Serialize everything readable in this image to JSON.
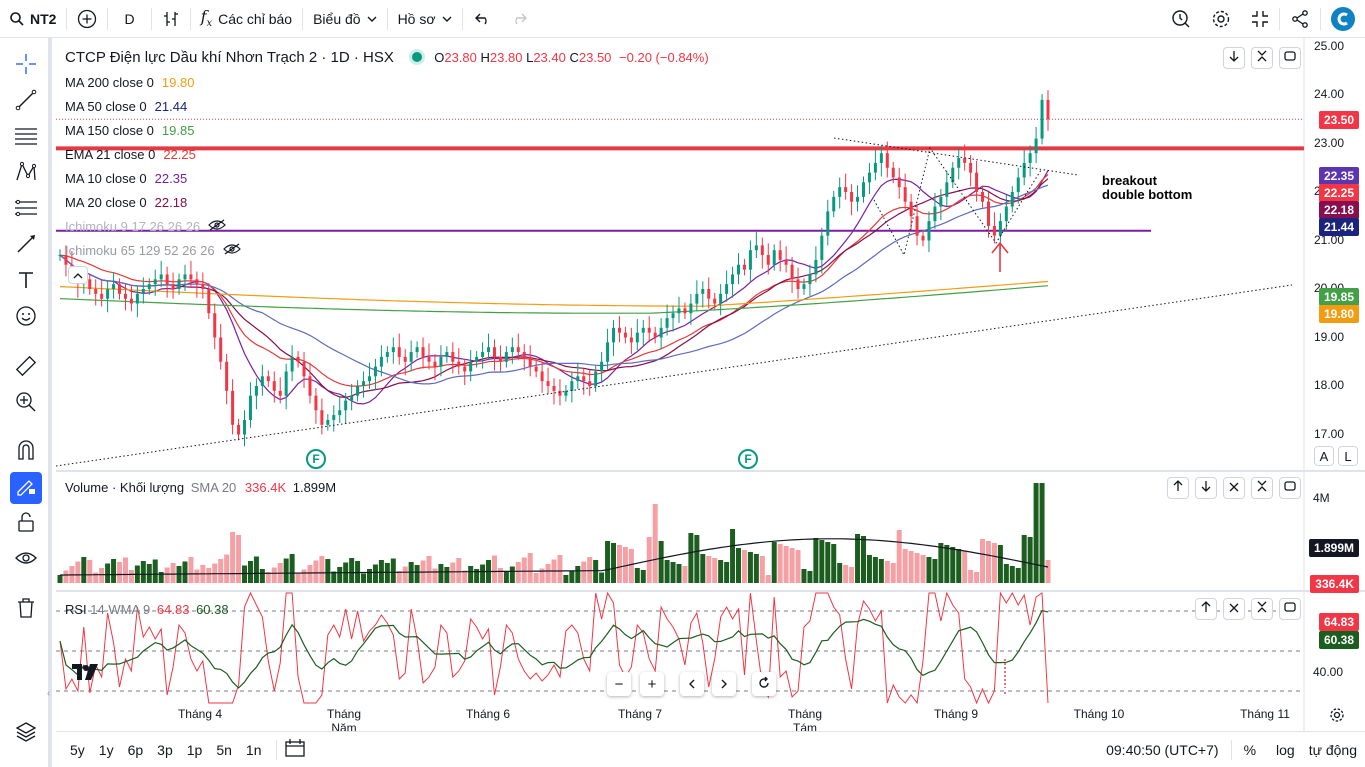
{
  "toolbar": {
    "symbol": "NT2",
    "interval": "D",
    "indicators_label": "Các chỉ báo",
    "chart_type_label": "Biểu đồ",
    "profile_label": "Hồ sơ",
    "icons": [
      "search-icon",
      "plus-circle-icon",
      "bar-type-icon",
      "fx-icon",
      "chevron-down-icon",
      "undo-icon",
      "redo-icon",
      "alert-icon",
      "gear-icon",
      "fullscreen-icon",
      "share-icon",
      "logo-icon"
    ]
  },
  "left_tools": [
    "crosshair-icon",
    "trendline-icon",
    "fib-icon",
    "pattern-icon",
    "multi-line-icon",
    "brush-icon",
    "text-icon",
    "emoji-icon",
    "ruler-icon",
    "zoom-in-icon",
    "magnet-icon",
    "lock-draw-icon",
    "lock-icon",
    "eye-icon",
    "trash-icon",
    "layers-icon"
  ],
  "header": {
    "title": "CTCP Điện lực Dầu khí Nhơn Trạch 2 · 1D · HSX",
    "o_label": "O",
    "o_value": "23.80",
    "h_label": "H",
    "h_value": "23.80",
    "l_label": "L",
    "l_value": "23.40",
    "c_label": "C",
    "c_value": "23.50",
    "change": "−0.20 (−0.84%)"
  },
  "indicators": [
    {
      "label": "MA 200 close 0",
      "value": "19.80",
      "color": "#f39c12"
    },
    {
      "label": "MA 50 close 0",
      "value": "21.44",
      "color": "#1a237e"
    },
    {
      "label": "MA 150 close 0",
      "value": "19.85",
      "color": "#43a047"
    },
    {
      "label": "EMA 21 close 0",
      "value": "22.25",
      "color": "#e53935"
    },
    {
      "label": "MA 10 close 0",
      "value": "22.35",
      "color": "#7b1fa2"
    },
    {
      "label": "MA 20 close 0",
      "value": "22.18",
      "color": "#880e4f"
    },
    {
      "label": "Ichimoku 9 17 26 26 26",
      "value": "",
      "color": "#b0b3bd"
    },
    {
      "label": "Ichimoku 65 129 52 26 26",
      "value": "",
      "color": "#9a9ca5"
    }
  ],
  "annotation": {
    "line1": "breakout",
    "line2": "double bottom"
  },
  "flag_marker": "F",
  "price_tags": [
    {
      "value": "23.50",
      "color": "#f23645"
    },
    {
      "value": "22.35",
      "color": "#5e35b1"
    },
    {
      "value": "22.25",
      "color": "#f23645"
    },
    {
      "value": "22.18",
      "color": "#880e4f"
    },
    {
      "value": "21.44",
      "color": "#1a237e"
    },
    {
      "value": "19.85",
      "color": "#43a047"
    },
    {
      "value": "19.80",
      "color": "#f39c12"
    }
  ],
  "price_scale_buttons": {
    "auto": "A",
    "log": "L"
  },
  "volume": {
    "title": "Volume · Khối lượng",
    "sma_label": "SMA 20",
    "sma_value": "336.4K",
    "value": "1.899M",
    "axis_label": "4M",
    "tag_value": "1.899M",
    "tag_sma": "336.4K"
  },
  "rsi": {
    "title": "RSI",
    "params": "14 WMA 9",
    "rsi_value": "64.83",
    "wma_value": "60.38",
    "axis_label": "40.00",
    "tag_rsi": "64.83",
    "tag_wma": "60.38"
  },
  "time_axis": [
    "Tháng 4",
    "Tháng Năm",
    "Tháng 6",
    "Tháng 7",
    "Tháng Tám",
    "Tháng 9",
    "Tháng 10",
    "Tháng 11"
  ],
  "bottom": {
    "ranges": [
      "5y",
      "1y",
      "6p",
      "3p",
      "1p",
      "5n",
      "1n"
    ],
    "time": "09:40:50 (UTC+7)",
    "percent": "%",
    "log": "log",
    "auto": "tự động"
  },
  "chart_data": {
    "type": "candlestick",
    "yticks": [
      17.0,
      18.0,
      19.0,
      20.0,
      21.0,
      22.0,
      23.0,
      24.0,
      25.0
    ],
    "ylim": [
      16.3,
      25.1
    ],
    "resistance_level": 22.9,
    "support_level": 21.2,
    "last_close": 23.5,
    "timeline_months": [
      "Tháng 4",
      "Tháng Năm",
      "Tháng 6",
      "Tháng 7",
      "Tháng Tám",
      "Tháng 9",
      "Tháng 10",
      "Tháng 11"
    ],
    "closes": [
      20.7,
      20.5,
      20.3,
      20.1,
      20.2,
      20.0,
      19.9,
      19.8,
      20.0,
      20.1,
      19.9,
      19.8,
      19.7,
      19.9,
      20.0,
      20.1,
      20.2,
      20.3,
      20.1,
      20.0,
      20.2,
      20.3,
      20.2,
      20.1,
      20.0,
      19.5,
      19.0,
      18.5,
      17.9,
      17.2,
      17.0,
      17.3,
      17.8,
      18.0,
      18.2,
      18.1,
      17.9,
      17.8,
      18.3,
      18.6,
      18.5,
      18.2,
      17.8,
      17.5,
      17.2,
      17.3,
      17.4,
      17.5,
      17.7,
      17.8,
      18.0,
      18.1,
      18.2,
      18.4,
      18.6,
      18.7,
      18.8,
      18.6,
      18.5,
      18.7,
      18.8,
      18.6,
      18.5,
      18.4,
      18.6,
      18.7,
      18.5,
      18.4,
      18.3,
      18.5,
      18.6,
      18.7,
      18.8,
      18.6,
      18.5,
      18.7,
      18.8,
      18.7,
      18.6,
      18.4,
      18.3,
      18.1,
      18.0,
      17.9,
      17.8,
      17.9,
      18.1,
      18.2,
      18.1,
      18.0,
      18.3,
      18.5,
      18.9,
      19.2,
      19.1,
      19.0,
      18.9,
      19.1,
      19.2,
      19.1,
      19.0,
      19.2,
      19.4,
      19.5,
      19.6,
      19.5,
      19.7,
      19.9,
      20.0,
      19.8,
      19.7,
      19.9,
      20.1,
      20.3,
      20.5,
      20.4,
      20.8,
      20.9,
      20.7,
      20.5,
      20.8,
      20.6,
      20.5,
      20.2,
      20.0,
      20.1,
      20.3,
      20.6,
      21.1,
      21.6,
      21.9,
      22.1,
      22.0,
      21.8,
      21.9,
      22.2,
      22.4,
      22.6,
      22.8,
      22.5,
      22.3,
      22.1,
      21.8,
      21.5,
      21.1,
      21.0,
      21.4,
      21.7,
      21.9,
      22.2,
      22.5,
      22.7,
      22.6,
      22.4,
      22.0,
      21.8,
      21.3,
      21.1,
      21.4,
      21.7,
      22.0,
      22.3,
      22.6,
      22.8,
      23.1,
      23.9,
      23.5
    ],
    "volume_unit": "shares",
    "volume_yticks": [
      4000000
    ],
    "volume_last": 1899000,
    "volume_sma_last": 336400,
    "rsi_last": 64.83,
    "rsi_wma_last": 60.38,
    "rsi_levels": [
      70,
      50,
      30
    ],
    "rsi_yticks": [
      40
    ],
    "annotation": "breakout double bottom"
  }
}
